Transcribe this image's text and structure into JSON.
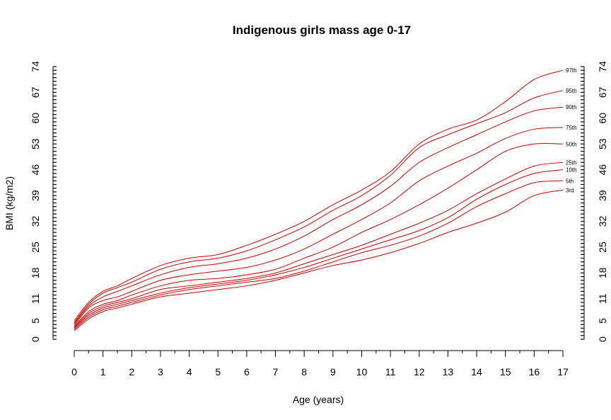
{
  "chart_data": {
    "type": "line",
    "title": "Indigenous girls mass age 0-17",
    "xlabel": "Age (years)",
    "ylabel": "BMI (kg/m2)",
    "xlim": [
      0,
      17
    ],
    "ylim": [
      0,
      74
    ],
    "x_ticks": [
      "0",
      "1",
      "2",
      "3",
      "4",
      "5",
      "6",
      "7",
      "8",
      "9",
      "10",
      "11",
      "12",
      "13",
      "14",
      "15",
      "16",
      "17"
    ],
    "y_ticks": [
      "0",
      "5",
      "11",
      "18",
      "25",
      "32",
      "39",
      "46",
      "53",
      "60",
      "67",
      "74"
    ],
    "line_color": "#cc0000",
    "x": [
      0,
      0.5,
      1,
      1.5,
      2,
      3,
      4,
      5,
      6,
      7,
      8,
      9,
      10,
      11,
      12,
      13,
      14,
      15,
      16,
      17
    ],
    "series": [
      {
        "name": "97th",
        "values": [
          5,
          10,
          13,
          14.5,
          16.5,
          20,
          22,
          23,
          25.5,
          28.5,
          32,
          36.5,
          40.5,
          45.5,
          53,
          57,
          59.5,
          64.5,
          70.5,
          73
        ]
      },
      {
        "name": "95th",
        "values": [
          4.5,
          9.5,
          12.5,
          14,
          15.5,
          19,
          21,
          22,
          24,
          27,
          30.5,
          35,
          39,
          44.5,
          52,
          55.5,
          58.5,
          61.5,
          65.5,
          67.5
        ]
      },
      {
        "name": "90th",
        "values": [
          4.2,
          9,
          11.5,
          13,
          14.5,
          17.5,
          19.5,
          20.5,
          22,
          24.5,
          28,
          32.5,
          36.5,
          41.5,
          48,
          52,
          55.5,
          59,
          62,
          63
        ]
      },
      {
        "name": "75th",
        "values": [
          3.8,
          8.5,
          10.5,
          11.5,
          13,
          16,
          17.5,
          18.5,
          19.5,
          21.5,
          24.5,
          28.5,
          32.5,
          37,
          43,
          47,
          50.5,
          54.5,
          57,
          57.5
        ]
      },
      {
        "name": "50th",
        "values": [
          3.5,
          7.5,
          9.5,
          10.5,
          12,
          14.5,
          16,
          16.5,
          17.5,
          19,
          22,
          25,
          29,
          32.5,
          36.5,
          41,
          46,
          51,
          53,
          53
        ]
      },
      {
        "name": "25th",
        "values": [
          3.2,
          7,
          9,
          10,
          11,
          13.5,
          14.5,
          15.5,
          16.5,
          18,
          20.5,
          23,
          25.5,
          28.5,
          31.5,
          35,
          39.5,
          43.5,
          47,
          48
        ]
      },
      {
        "name": "10th",
        "values": [
          3,
          6.5,
          8.5,
          9.5,
          10.5,
          12.5,
          14,
          15,
          16,
          17.5,
          19.5,
          22,
          24.5,
          27,
          29.5,
          33,
          38,
          42,
          45,
          46
        ]
      },
      {
        "name": "5th",
        "values": [
          2.7,
          6,
          8,
          9,
          10,
          12,
          13.5,
          14.5,
          15.5,
          16.5,
          18.5,
          21,
          23.5,
          25.5,
          28,
          31.5,
          36,
          39.5,
          42.5,
          43
        ]
      },
      {
        "name": "3rd",
        "values": [
          2.3,
          5.5,
          7.5,
          8.5,
          9.5,
          11.5,
          12.5,
          13.5,
          14.5,
          16,
          18,
          20,
          21.5,
          23.5,
          26,
          29,
          31.5,
          34.5,
          39,
          40.5
        ]
      }
    ]
  }
}
